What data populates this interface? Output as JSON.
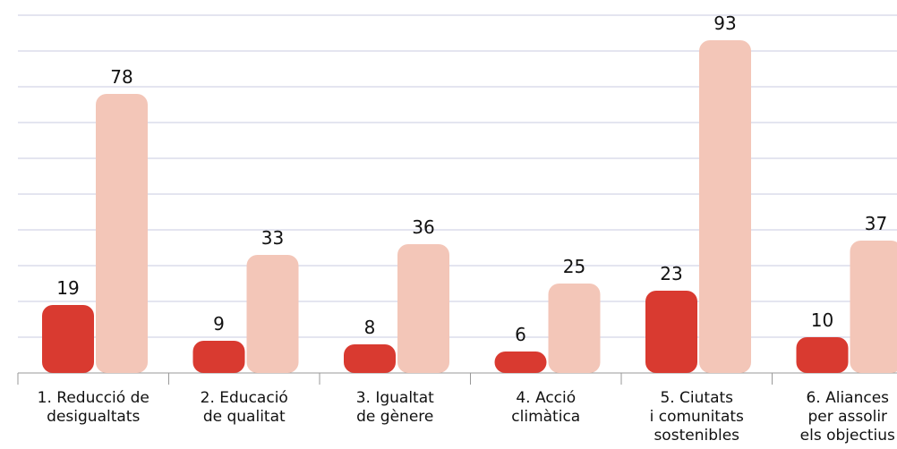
{
  "chart_data": {
    "type": "bar",
    "categories": [
      "1. Reducció de\ndesigualtats",
      "2. Educació\nde qualitat",
      "3. Igualtat\nde gènere",
      "4. Acció\nclimàtica",
      "5. Ciutats\ni comunitats\nsostenibles",
      "6. Aliances\nper assolir\nels objectius"
    ],
    "series": [
      {
        "color": "#d93a30",
        "values": [
          19,
          9,
          8,
          6,
          23,
          10
        ]
      },
      {
        "color": "#f3c6b8",
        "values": [
          78,
          33,
          36,
          25,
          93,
          37
        ]
      }
    ],
    "ylim": [
      0,
      100
    ],
    "yticks": [
      0,
      10,
      20,
      30,
      40,
      50,
      60,
      70,
      80,
      90,
      100
    ],
    "grid": true
  }
}
